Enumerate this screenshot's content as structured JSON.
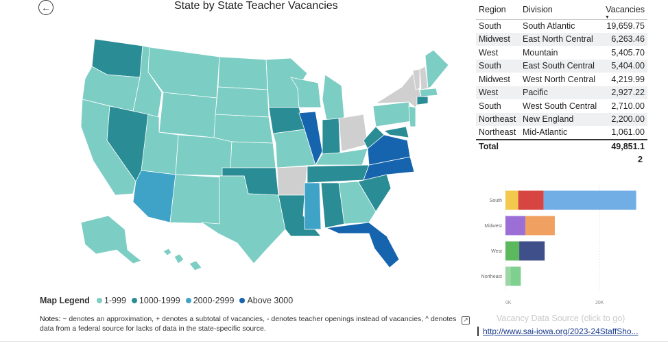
{
  "header": {
    "back_icon": "arrow-left-icon",
    "title": "State by State Teacher Vacancies"
  },
  "legend": {
    "title": "Map Legend",
    "items": [
      {
        "label": "1-999",
        "color": "#7ccdc4"
      },
      {
        "label": "1000-1999",
        "color": "#2a8c95"
      },
      {
        "label": "2000-2999",
        "color": "#3fa3c8"
      },
      {
        "label": "Above 3000",
        "color": "#1564ad"
      }
    ],
    "nodata_color": "#cfcfcf"
  },
  "notes": {
    "label": "Notes:",
    "text": " ~ denotes an approximation, + denotes a subtotal of vacancies, - denotes teacher openings instead of vacancies, ^ denotes data from a federal source for lacks of data in the state-specific source."
  },
  "table": {
    "headers": {
      "region": "Region",
      "division": "Division",
      "vacancies": "Vacancies"
    },
    "rows": [
      {
        "region": "South",
        "division": "South Atlantic",
        "vacancies": "19,659.75"
      },
      {
        "region": "Midwest",
        "division": "East North Central",
        "vacancies": "6,263.46"
      },
      {
        "region": "West",
        "division": "Mountain",
        "vacancies": "5,405.70"
      },
      {
        "region": "South",
        "division": "East South Central",
        "vacancies": "5,404.00"
      },
      {
        "region": "Midwest",
        "division": "West North Central",
        "vacancies": "4,219.99"
      },
      {
        "region": "West",
        "division": "Pacific",
        "vacancies": "2,927.22"
      },
      {
        "region": "South",
        "division": "West South Central",
        "vacancies": "2,710.00"
      },
      {
        "region": "Northeast",
        "division": "New England",
        "vacancies": "2,200.00"
      },
      {
        "region": "Northeast",
        "division": "Mid-Atlantic",
        "vacancies": "1,061.00"
      }
    ],
    "total": {
      "label": "Total",
      "value": "49,851.1",
      "value_wrap": "2"
    }
  },
  "chart_data": {
    "type": "bar",
    "orientation": "horizontal",
    "stacked": true,
    "categories": [
      "South",
      "Midwest",
      "West",
      "Northeast"
    ],
    "series": [
      {
        "values": [
          2710.0,
          4219.99,
          2927.22,
          1061.0
        ],
        "colors": [
          "#f2c94c",
          "#9b6fd6",
          "#5cb85c",
          "#9bd6a4"
        ]
      },
      {
        "values": [
          5404.0,
          6263.46,
          5405.7,
          2200.0
        ],
        "colors": [
          "#d64541",
          "#f0a060",
          "#3f4f8a",
          "#7fcf8f"
        ]
      },
      {
        "values": [
          19659.75,
          0,
          0,
          0
        ],
        "colors": [
          "#72aee6",
          "#72aee6",
          "#72aee6",
          "#72aee6"
        ]
      }
    ],
    "xticks": [
      {
        "value": 0,
        "label": "0K"
      },
      {
        "value": 20000,
        "label": "20K"
      }
    ],
    "xlim": [
      0,
      29000
    ]
  },
  "source": {
    "caption": "Vacancy Data Source (click to go)",
    "link": "http://www.sai-iowa.org/2023-24StaffSho..."
  }
}
